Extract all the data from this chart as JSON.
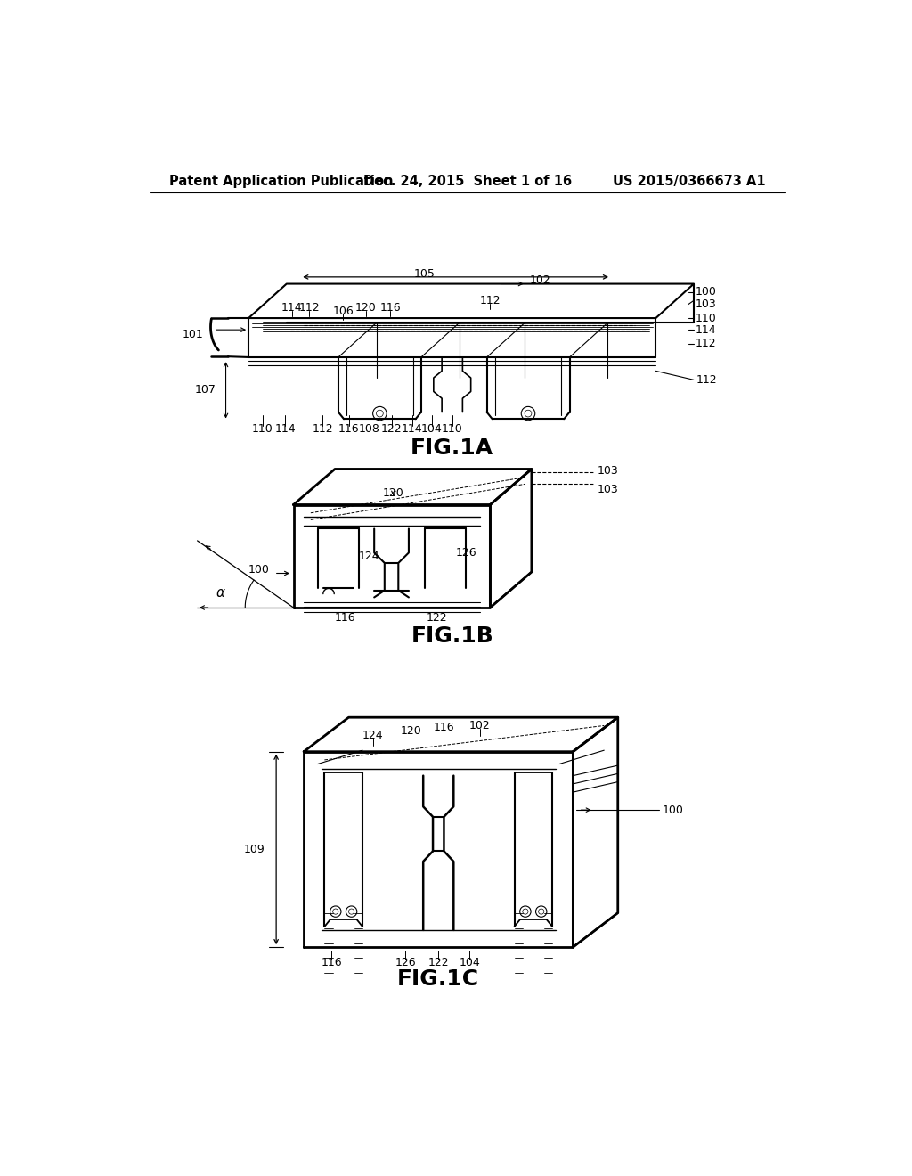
{
  "bg": "#ffffff",
  "lc": "#000000",
  "header_left": "Patent Application Publication",
  "header_center": "Dec. 24, 2015  Sheet 1 of 16",
  "header_right": "US 2015/0366673 A1",
  "fig1a_caption": "FIG.1A",
  "fig1b_caption": "FIG.1B",
  "fig1c_caption": "FIG.1C"
}
